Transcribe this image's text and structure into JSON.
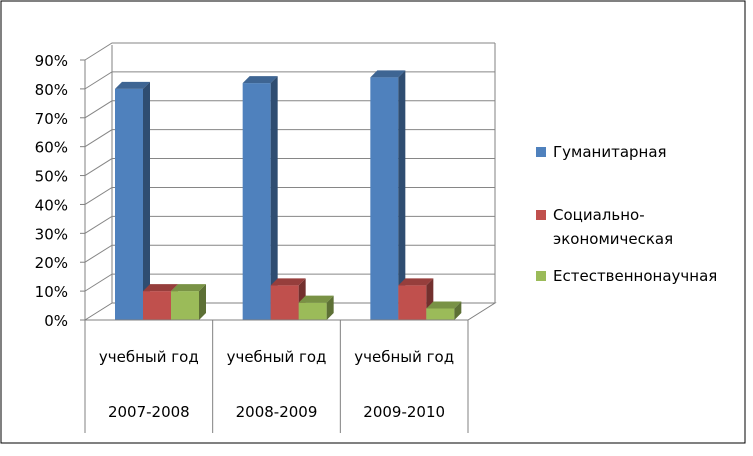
{
  "chart_data": {
    "type": "bar",
    "title": "",
    "xlabel": "",
    "ylabel": "",
    "ylim": [
      0,
      0.9
    ],
    "ytick_step": 0.1,
    "y_format": "percent",
    "grid": true,
    "legend_position": "right",
    "three_d": true,
    "categories": [
      {
        "line1": "учебный год",
        "line2": "2007-2008"
      },
      {
        "line1": "учебный год",
        "line2": "2008-2009"
      },
      {
        "line1": "учебный год",
        "line2": "2009-2010"
      }
    ],
    "series": [
      {
        "name": "Гуманитарная",
        "legend_lines": [
          "Гуманитарная"
        ],
        "color": "#4f81bd",
        "values": [
          0.8,
          0.82,
          0.84
        ]
      },
      {
        "name": "Социально-экономическая",
        "legend_lines": [
          "Социально-",
          "экономическая"
        ],
        "color": "#c0504d",
        "values": [
          0.1,
          0.12,
          0.12
        ]
      },
      {
        "name": "Естественнонаучная",
        "legend_lines": [
          "Естественнонаучная"
        ],
        "color": "#9bbb59",
        "values": [
          0.1,
          0.06,
          0.04
        ]
      }
    ]
  }
}
